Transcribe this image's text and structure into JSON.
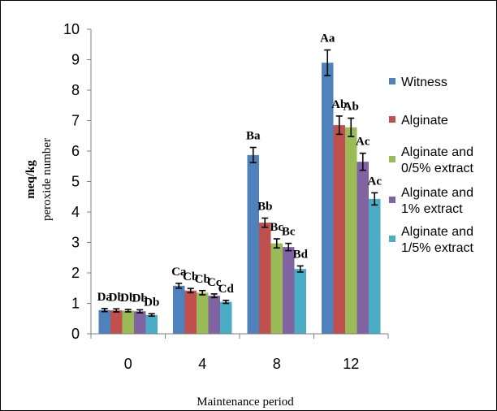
{
  "chart_data": {
    "type": "bar",
    "categories": [
      "0",
      "4",
      "8",
      "12"
    ],
    "xlabel": "Maintenance period",
    "ylabel_line1": "meq/kg",
    "ylabel_line2": "peroxide number",
    "ylim": [
      0,
      10
    ],
    "yticks": [
      "0",
      "1",
      "2",
      "3",
      "4",
      "5",
      "6",
      "7",
      "8",
      "9",
      "10"
    ],
    "grid": false,
    "legend_position": "right",
    "series": [
      {
        "name_lines": [
          "Witness"
        ],
        "color": "#4F81BD",
        "values": [
          0.78,
          1.58,
          5.87,
          8.9
        ],
        "errors": [
          0.05,
          0.08,
          0.25,
          0.42
        ],
        "labels": [
          "Da",
          "Ca",
          "Ba",
          "Aa"
        ]
      },
      {
        "name_lines": [
          "Alginate"
        ],
        "color": "#C0504D",
        "values": [
          0.77,
          1.42,
          3.65,
          6.85
        ],
        "errors": [
          0.05,
          0.07,
          0.15,
          0.3
        ],
        "labels": [
          "Db",
          "Cb",
          "Bb",
          "Ab"
        ]
      },
      {
        "name_lines": [
          "Alginate and",
          "0/5%  extract"
        ],
        "color": "#9BBB59",
        "values": [
          0.76,
          1.35,
          2.97,
          6.78
        ],
        "errors": [
          0.04,
          0.07,
          0.15,
          0.3
        ],
        "labels": [
          "Db",
          "Cb",
          "Bc",
          "Ab"
        ]
      },
      {
        "name_lines": [
          "Alginate and",
          "1% extract"
        ],
        "color": "#8064A2",
        "values": [
          0.74,
          1.25,
          2.85,
          5.65
        ],
        "errors": [
          0.05,
          0.06,
          0.12,
          0.28
        ],
        "labels": [
          "Db",
          "Cc",
          "Bc",
          "Ac"
        ]
      },
      {
        "name_lines": [
          "Alginate and",
          "1/5% extract"
        ],
        "color": "#4BACC6",
        "values": [
          0.62,
          1.05,
          2.13,
          4.43
        ],
        "errors": [
          0.04,
          0.05,
          0.1,
          0.2
        ],
        "labels": [
          "Db",
          "Cd",
          "Bd",
          "Ac"
        ]
      }
    ]
  }
}
